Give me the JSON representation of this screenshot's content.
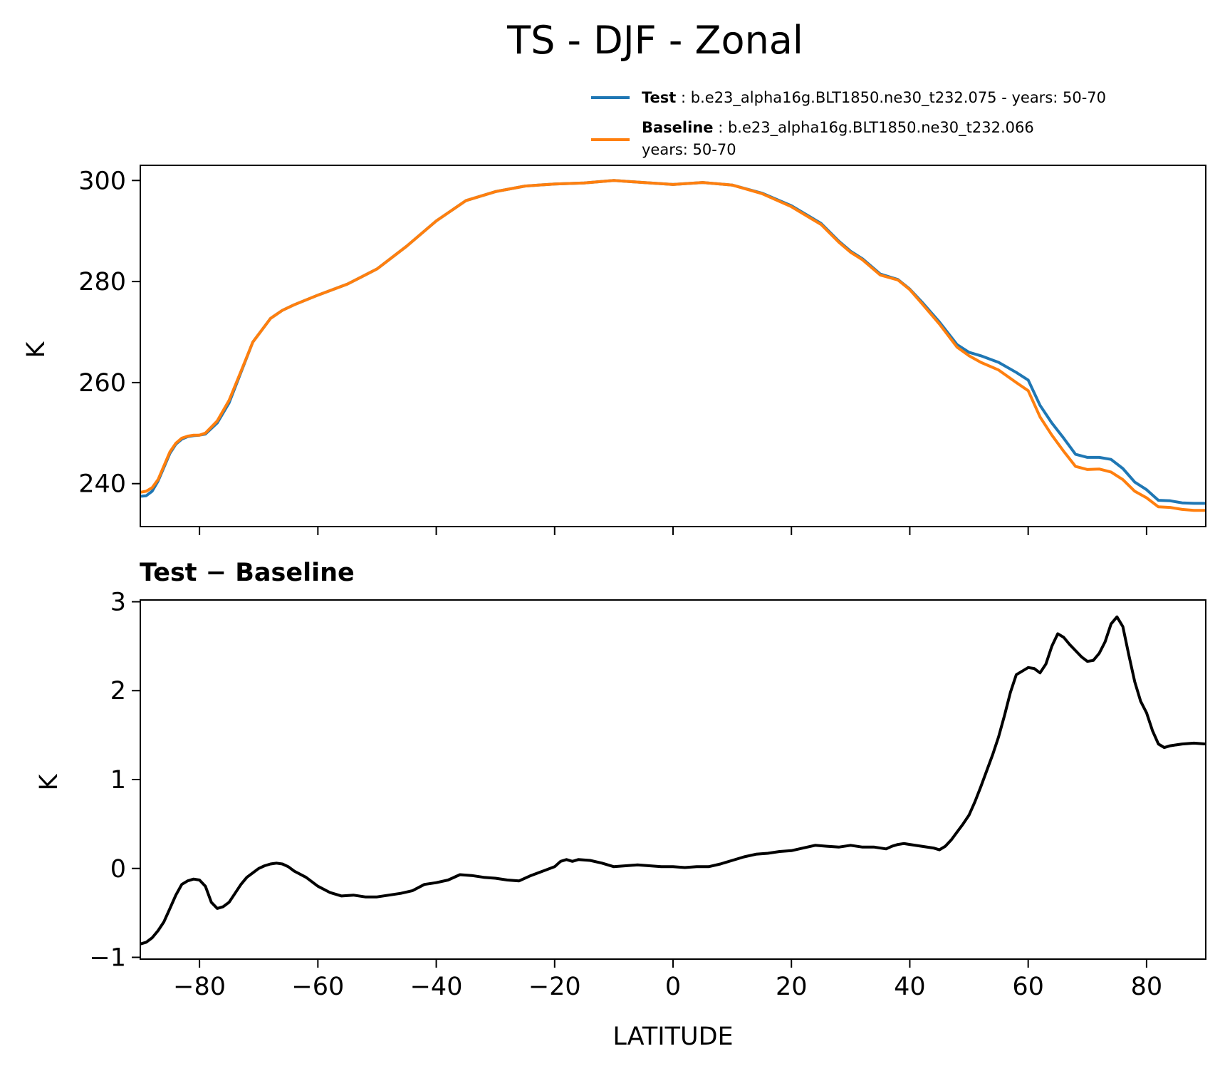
{
  "chart_data": [
    {
      "type": "line",
      "title": "TS - DJF - Zonal",
      "xlabel": "",
      "ylabel": "K",
      "xlim": [
        -90,
        90
      ],
      "ylim": [
        231.5,
        303
      ],
      "xticks": [
        -80,
        -60,
        -40,
        -20,
        0,
        20,
        40,
        60,
        80
      ],
      "yticks": [
        240,
        260,
        280,
        300
      ],
      "ytick_labels": [
        "240",
        "260",
        "280",
        "300"
      ],
      "grid": false,
      "legend_position": "upper-right, above axes",
      "series": [
        {
          "name": "Test",
          "label": "Test",
          "description": ": b.e23_alpha16g.BLT1850.ne30_t232.075 - years: 50-70",
          "color": "#1f77b4",
          "x": [
            -90,
            -89,
            -88,
            -87,
            -85,
            -84,
            -83,
            -82,
            -81,
            -80,
            -79,
            -77,
            -75,
            -73,
            -71,
            -68,
            -66,
            -64,
            -60,
            -55,
            -50,
            -45,
            -40,
            -35,
            -30,
            -25,
            -20,
            -15,
            -10,
            -5,
            0,
            5,
            10,
            15,
            20,
            25,
            28,
            30,
            32,
            35,
            38,
            40,
            42,
            45,
            48,
            50,
            52,
            55,
            58,
            60,
            62,
            64,
            66,
            68,
            70,
            72,
            74,
            76,
            78,
            80,
            82,
            84,
            86,
            88,
            90
          ],
          "values": [
            237.5,
            237.6,
            238.5,
            240.5,
            246.0,
            247.8,
            248.8,
            249.3,
            249.5,
            249.6,
            249.8,
            252.0,
            256.0,
            262.0,
            268.0,
            272.7,
            274.3,
            275.4,
            277.3,
            279.5,
            282.5,
            287.0,
            292.0,
            296.0,
            297.8,
            298.9,
            299.3,
            299.5,
            300.0,
            299.6,
            299.2,
            299.6,
            299.1,
            297.5,
            295.0,
            291.5,
            288.0,
            286.0,
            284.5,
            281.5,
            280.4,
            278.5,
            276.0,
            272.0,
            267.5,
            266.0,
            265.3,
            264.0,
            262.0,
            260.5,
            255.5,
            252.0,
            249.0,
            245.8,
            245.2,
            245.2,
            244.8,
            243.0,
            240.3,
            238.8,
            236.7,
            236.6,
            236.2,
            236.1,
            236.1
          ]
        },
        {
          "name": "Baseline",
          "label": "Baseline",
          "description": ": b.e23_alpha16g.BLT1850.ne30_t232.066",
          "description_line2": "years: 50-70",
          "color": "#ff7f0e",
          "x": [
            -90,
            -89,
            -88,
            -87,
            -85,
            -84,
            -83,
            -82,
            -81,
            -80,
            -79,
            -77,
            -75,
            -73,
            -71,
            -68,
            -66,
            -64,
            -60,
            -55,
            -50,
            -45,
            -40,
            -35,
            -30,
            -25,
            -20,
            -15,
            -10,
            -5,
            0,
            5,
            10,
            15,
            20,
            25,
            28,
            30,
            32,
            35,
            38,
            40,
            42,
            45,
            48,
            50,
            52,
            55,
            58,
            60,
            62,
            64,
            66,
            68,
            70,
            72,
            74,
            76,
            78,
            80,
            82,
            84,
            86,
            88,
            90
          ],
          "values": [
            238.3,
            238.5,
            239.2,
            240.8,
            246.3,
            248.0,
            249.0,
            249.4,
            249.6,
            249.6,
            250.0,
            252.4,
            256.5,
            262.2,
            268.0,
            272.7,
            274.3,
            275.4,
            277.3,
            279.5,
            282.5,
            287.0,
            292.0,
            296.0,
            297.8,
            298.9,
            299.3,
            299.5,
            300.0,
            299.6,
            299.2,
            299.6,
            299.1,
            297.4,
            294.8,
            291.3,
            287.8,
            285.8,
            284.3,
            281.3,
            280.3,
            278.4,
            275.7,
            271.6,
            267.0,
            265.3,
            264.0,
            262.5,
            260.0,
            258.4,
            253.2,
            249.6,
            246.4,
            243.4,
            242.8,
            242.9,
            242.3,
            240.8,
            238.5,
            237.2,
            235.4,
            235.3,
            234.9,
            234.7,
            234.7
          ]
        }
      ]
    },
    {
      "type": "line",
      "title": "Test − Baseline",
      "xlabel": "LATITUDE",
      "ylabel": "K",
      "xlim": [
        -90,
        90
      ],
      "ylim": [
        -1.02,
        3.02
      ],
      "xticks": [
        -80,
        -60,
        -40,
        -20,
        0,
        20,
        40,
        60,
        80
      ],
      "xtick_labels": [
        "−80",
        "−60",
        "−40",
        "−20",
        "0",
        "20",
        "40",
        "60",
        "80"
      ],
      "yticks": [
        -1,
        0,
        1,
        2,
        3
      ],
      "ytick_labels": [
        "−1",
        "0",
        "1",
        "2",
        "3"
      ],
      "grid": false,
      "series": [
        {
          "name": "Test - Baseline",
          "color": "#000000",
          "x": [
            -90,
            -89,
            -88,
            -87,
            -86,
            -85,
            -84,
            -83,
            -82,
            -81,
            -80,
            -79,
            -78,
            -77,
            -76,
            -75,
            -74,
            -73,
            -72,
            -71,
            -70,
            -69,
            -68,
            -67,
            -66,
            -65,
            -64,
            -62,
            -60,
            -58,
            -56,
            -54,
            -52,
            -50,
            -48,
            -46,
            -44,
            -42,
            -40,
            -38,
            -36,
            -34,
            -32,
            -30,
            -28,
            -26,
            -24,
            -22,
            -20,
            -19,
            -18,
            -17,
            -16,
            -14,
            -12,
            -10,
            -8,
            -6,
            -4,
            -2,
            0,
            2,
            4,
            6,
            8,
            10,
            12,
            14,
            16,
            18,
            20,
            22,
            24,
            26,
            28,
            30,
            32,
            34,
            36,
            37,
            38,
            39,
            40,
            42,
            44,
            45,
            46,
            47,
            48,
            49,
            50,
            51,
            52,
            53,
            54,
            55,
            56,
            57,
            58,
            59,
            60,
            61,
            62,
            63,
            64,
            65,
            66,
            67,
            68,
            69,
            70,
            71,
            72,
            73,
            74,
            75,
            76,
            77,
            78,
            79,
            80,
            81,
            82,
            83,
            84,
            86,
            88,
            90
          ],
          "values": [
            -0.85,
            -0.83,
            -0.78,
            -0.7,
            -0.6,
            -0.45,
            -0.3,
            -0.18,
            -0.14,
            -0.12,
            -0.13,
            -0.2,
            -0.38,
            -0.45,
            -0.43,
            -0.38,
            -0.28,
            -0.18,
            -0.1,
            -0.05,
            0.0,
            0.03,
            0.05,
            0.06,
            0.05,
            0.02,
            -0.03,
            -0.1,
            -0.2,
            -0.27,
            -0.31,
            -0.3,
            -0.32,
            -0.32,
            -0.3,
            -0.28,
            -0.25,
            -0.18,
            -0.16,
            -0.13,
            -0.07,
            -0.08,
            -0.1,
            -0.11,
            -0.13,
            -0.14,
            -0.08,
            -0.03,
            0.02,
            0.08,
            0.1,
            0.08,
            0.1,
            0.09,
            0.06,
            0.02,
            0.03,
            0.04,
            0.03,
            0.02,
            0.02,
            0.01,
            0.02,
            0.02,
            0.05,
            0.09,
            0.13,
            0.16,
            0.17,
            0.19,
            0.2,
            0.23,
            0.26,
            0.25,
            0.24,
            0.26,
            0.24,
            0.24,
            0.22,
            0.25,
            0.27,
            0.28,
            0.27,
            0.25,
            0.23,
            0.21,
            0.25,
            0.32,
            0.41,
            0.5,
            0.6,
            0.75,
            0.92,
            1.1,
            1.28,
            1.48,
            1.72,
            1.98,
            2.18,
            2.22,
            2.26,
            2.25,
            2.2,
            2.3,
            2.5,
            2.64,
            2.6,
            2.52,
            2.45,
            2.38,
            2.33,
            2.34,
            2.42,
            2.55,
            2.75,
            2.83,
            2.72,
            2.4,
            2.1,
            1.88,
            1.75,
            1.55,
            1.4,
            1.36,
            1.38,
            1.4,
            1.41,
            1.4
          ]
        }
      ]
    }
  ]
}
